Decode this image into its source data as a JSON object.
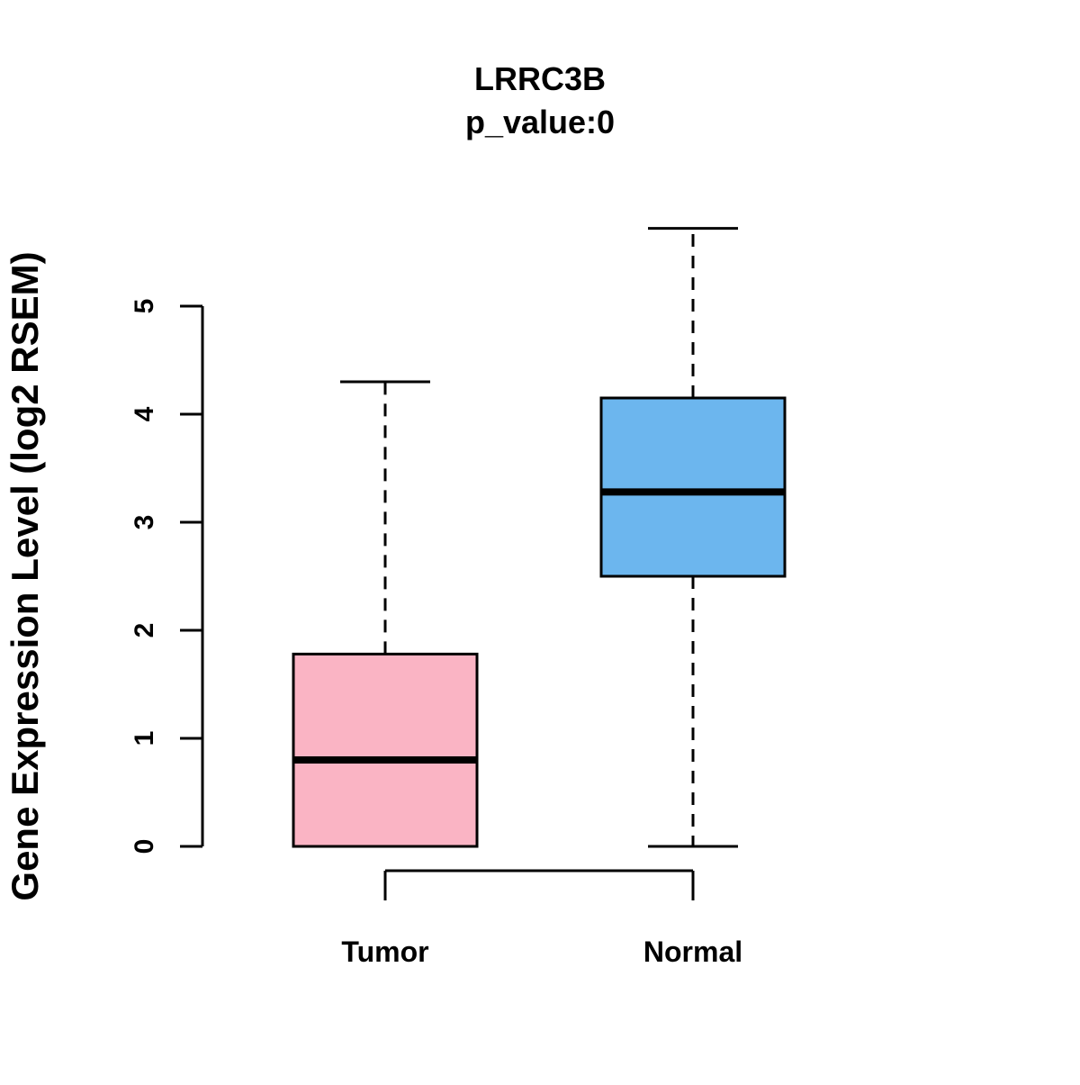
{
  "chart_data": {
    "type": "boxplot",
    "title": "LRRC3B",
    "subtitle": "p_value:0",
    "ylabel": "Gene Expression Level (log2 RSEM)",
    "xlabel": "",
    "ylim": [
      0,
      5
    ],
    "yticks": [
      0,
      1,
      2,
      3,
      4,
      5
    ],
    "grid": false,
    "legend": "none",
    "colors": {
      "tumor_fill": "#FAB4C4",
      "normal_fill": "#6CB6EE",
      "stroke": "#000000"
    },
    "groups": [
      {
        "label": "Tumor",
        "color_key": "tumor_fill",
        "min": 0,
        "q1": 0,
        "median": 0.8,
        "q3": 1.78,
        "max": 4.3
      },
      {
        "label": "Normal",
        "color_key": "normal_fill",
        "min": 0,
        "q1": 2.5,
        "median": 3.28,
        "q3": 4.15,
        "max": 5.72
      }
    ]
  }
}
